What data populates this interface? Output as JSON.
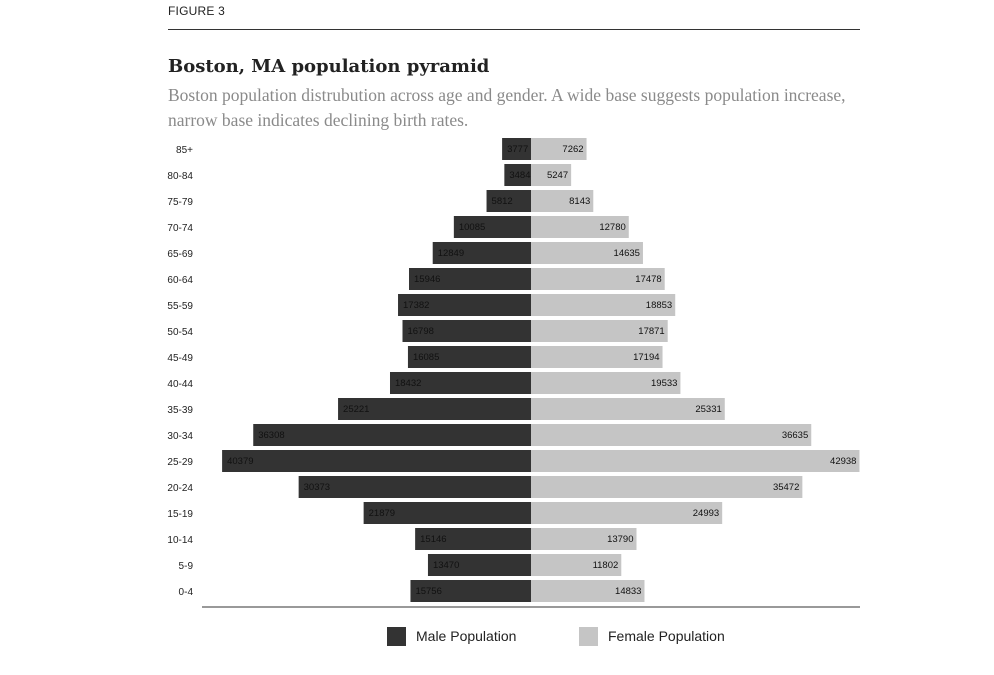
{
  "figure_label": "FIGURE 3",
  "colors": {
    "male": "#333333",
    "female": "#c5c5c5",
    "axis": "#333333"
  },
  "chart_data": {
    "type": "bar",
    "title": "Boston, MA population pyramid",
    "subtitle": "Boston population distrubution across age and gender. A wide base suggests population increase, narrow base indicates declining birth rates.",
    "orientation": "horizontal-diverging",
    "categories": [
      "85+",
      "80-84",
      "75-79",
      "70-74",
      "65-69",
      "60-64",
      "55-59",
      "50-54",
      "45-49",
      "40-44",
      "35-39",
      "30-34",
      "25-29",
      "20-24",
      "15-19",
      "10-14",
      "5-9",
      "0-4"
    ],
    "series": [
      {
        "name": "Male Population",
        "values": [
          3777,
          3484,
          5812,
          10085,
          12849,
          15946,
          17382,
          16798,
          16085,
          18432,
          25221,
          36308,
          40379,
          30373,
          21879,
          15146,
          13470,
          15756
        ]
      },
      {
        "name": "Female Population",
        "values": [
          7262,
          5247,
          8143,
          12780,
          14635,
          17478,
          18853,
          17871,
          17194,
          19533,
          25331,
          36635,
          42938,
          35472,
          24993,
          13790,
          11802,
          14833
        ]
      }
    ],
    "legend": "bottom-center",
    "grid": false
  },
  "legend": {
    "male_label": "Male Population",
    "female_label": "Female Population"
  }
}
